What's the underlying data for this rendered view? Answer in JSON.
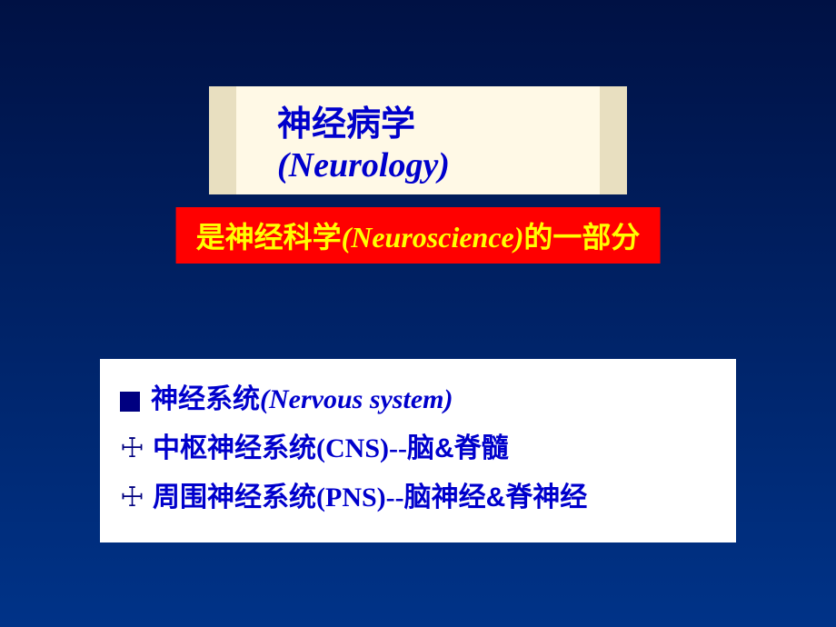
{
  "slide": {
    "background_gradient": [
      "#001144",
      "#002266",
      "#003388"
    ],
    "title": {
      "cn": "神经病学",
      "en": "(Neurology)",
      "text_color": "#0000cc",
      "bg_color": "#fff9e6",
      "side_color": "#e8dfc0",
      "fontsize": 38
    },
    "subtitle": {
      "prefix": "是神经科学",
      "en": "(Neuroscience)",
      "suffix": "的一部分",
      "text_color": "#ffff00",
      "bg_color": "#ff0000",
      "fontsize": 32
    },
    "content": {
      "bg_color": "#ffffff",
      "text_color": "#0000cc",
      "bullet_color": "#000080",
      "fontsize": 30,
      "items": [
        {
          "marker": "square",
          "cn": "神经系统",
          "en": "(Nervous system)"
        },
        {
          "marker": "cross",
          "cn": "中枢神经系统",
          "en_plain": "(CNS)--",
          "suffix": "脑&脊髓"
        },
        {
          "marker": "cross",
          "cn": "周围神经系统",
          "en_plain": "(PNS)--",
          "suffix": "脑神经&脊神经"
        }
      ]
    }
  }
}
